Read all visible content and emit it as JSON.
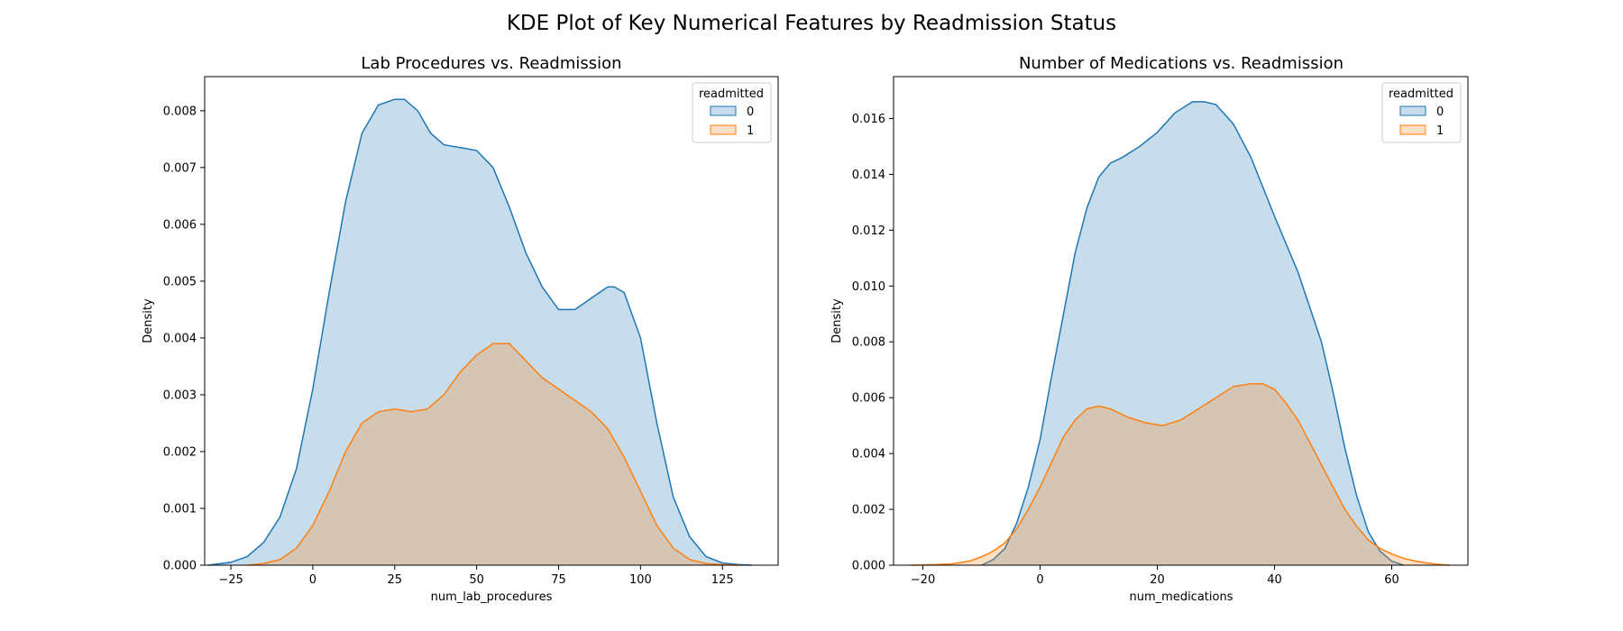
{
  "figure": {
    "suptitle": "KDE Plot of Key Numerical Features by Readmission Status"
  },
  "colors": {
    "series0_line": "#1f77b4",
    "series1_line": "#ff7f0e",
    "series0_fill": "#1f77b4",
    "series1_fill": "#ff7f0e"
  },
  "chart_data": [
    {
      "type": "area",
      "title": "Lab Procedures vs. Readmission",
      "xlabel": "num_lab_procedures",
      "ylabel": "Density",
      "xlim": [
        -33,
        142
      ],
      "ylim": [
        0,
        0.0086
      ],
      "xticks": [
        -25,
        0,
        25,
        50,
        75,
        100,
        125
      ],
      "xtick_labels": [
        "−25",
        "0",
        "25",
        "50",
        "75",
        "100",
        "125"
      ],
      "yticks": [
        0,
        0.001,
        0.002,
        0.003,
        0.004,
        0.005,
        0.006,
        0.007,
        0.008
      ],
      "ytick_labels": [
        "0.000",
        "0.001",
        "0.002",
        "0.003",
        "0.004",
        "0.005",
        "0.006",
        "0.007",
        "0.008"
      ],
      "grid": false,
      "legend": {
        "title": "readmitted",
        "position": "top-right"
      },
      "series": [
        {
          "name": "0",
          "x": [
            -32,
            -25,
            -20,
            -15,
            -10,
            -5,
            0,
            5,
            10,
            15,
            20,
            25,
            28,
            32,
            36,
            40,
            45,
            50,
            55,
            60,
            65,
            70,
            75,
            80,
            85,
            90,
            92,
            95,
            100,
            105,
            110,
            115,
            120,
            125,
            130,
            134
          ],
          "y": [
            0,
            5e-05,
            0.00015,
            0.0004,
            0.00085,
            0.0017,
            0.0031,
            0.0048,
            0.0064,
            0.0076,
            0.0081,
            0.0082,
            0.0082,
            0.008,
            0.0076,
            0.0074,
            0.00735,
            0.0073,
            0.007,
            0.0063,
            0.0055,
            0.0049,
            0.0045,
            0.0045,
            0.0047,
            0.0049,
            0.0049,
            0.0048,
            0.004,
            0.0025,
            0.0012,
            0.0005,
            0.00015,
            4e-05,
            1e-05,
            0
          ]
        },
        {
          "name": "1",
          "x": [
            -20,
            -15,
            -10,
            -5,
            0,
            5,
            10,
            15,
            20,
            25,
            30,
            35,
            40,
            45,
            50,
            55,
            60,
            65,
            70,
            75,
            80,
            85,
            90,
            95,
            100,
            105,
            110,
            115,
            120,
            125,
            130
          ],
          "y": [
            0,
            3e-05,
            0.0001,
            0.0003,
            0.0007,
            0.0013,
            0.002,
            0.0025,
            0.0027,
            0.00275,
            0.0027,
            0.00275,
            0.003,
            0.0034,
            0.0037,
            0.0039,
            0.0039,
            0.0036,
            0.0033,
            0.0031,
            0.0029,
            0.0027,
            0.0024,
            0.0019,
            0.0013,
            0.0007,
            0.0003,
            0.0001,
            3e-05,
            1e-05,
            0
          ]
        }
      ]
    },
    {
      "type": "area",
      "title": "Number of Medications vs. Readmission",
      "xlabel": "num_medications",
      "ylabel": "Density",
      "xlim": [
        -25,
        73
      ],
      "ylim": [
        0,
        0.0175
      ],
      "xticks": [
        -20,
        0,
        20,
        40,
        60
      ],
      "xtick_labels": [
        "−20",
        "0",
        "20",
        "40",
        "60"
      ],
      "yticks": [
        0,
        0.002,
        0.004,
        0.006,
        0.008,
        0.01,
        0.012,
        0.014,
        0.016
      ],
      "ytick_labels": [
        "0.000",
        "0.002",
        "0.004",
        "0.006",
        "0.008",
        "0.010",
        "0.012",
        "0.014",
        "0.016"
      ],
      "grid": false,
      "legend": {
        "title": "readmitted",
        "position": "top-right"
      },
      "series": [
        {
          "name": "0",
          "x": [
            -10,
            -8,
            -6,
            -4,
            -2,
            0,
            2,
            4,
            6,
            8,
            10,
            12,
            14,
            17,
            20,
            23,
            26,
            28,
            30,
            33,
            36,
            40,
            44,
            48,
            50,
            52,
            54,
            56,
            58,
            60,
            62
          ],
          "y": [
            0,
            0.0002,
            0.0006,
            0.0015,
            0.0028,
            0.0045,
            0.0068,
            0.009,
            0.0112,
            0.0128,
            0.0139,
            0.0144,
            0.0146,
            0.015,
            0.0155,
            0.0162,
            0.0166,
            0.0166,
            0.0165,
            0.0158,
            0.0146,
            0.0125,
            0.0105,
            0.008,
            0.0062,
            0.0042,
            0.0025,
            0.0012,
            0.0005,
            0.00015,
            0
          ]
        },
        {
          "name": "1",
          "x": [
            -22,
            -18,
            -15,
            -12,
            -10,
            -8,
            -6,
            -4,
            -2,
            0,
            2,
            4,
            6,
            8,
            10,
            12,
            15,
            18,
            21,
            24,
            27,
            30,
            33,
            36,
            38,
            40,
            42,
            44,
            46,
            48,
            50,
            52,
            54,
            56,
            58,
            60,
            62,
            64,
            66,
            68,
            70
          ],
          "y": [
            0,
            2e-05,
            5e-05,
            0.00015,
            0.0003,
            0.0005,
            0.0008,
            0.0013,
            0.002,
            0.0028,
            0.0037,
            0.0046,
            0.0052,
            0.0056,
            0.0057,
            0.0056,
            0.0053,
            0.0051,
            0.005,
            0.0052,
            0.0056,
            0.006,
            0.0064,
            0.0065,
            0.0065,
            0.0063,
            0.0058,
            0.0052,
            0.0044,
            0.0036,
            0.0028,
            0.002,
            0.0014,
            0.0009,
            0.0006,
            0.0004,
            0.00025,
            0.00015,
            8e-05,
            3e-05,
            0
          ]
        }
      ]
    }
  ]
}
